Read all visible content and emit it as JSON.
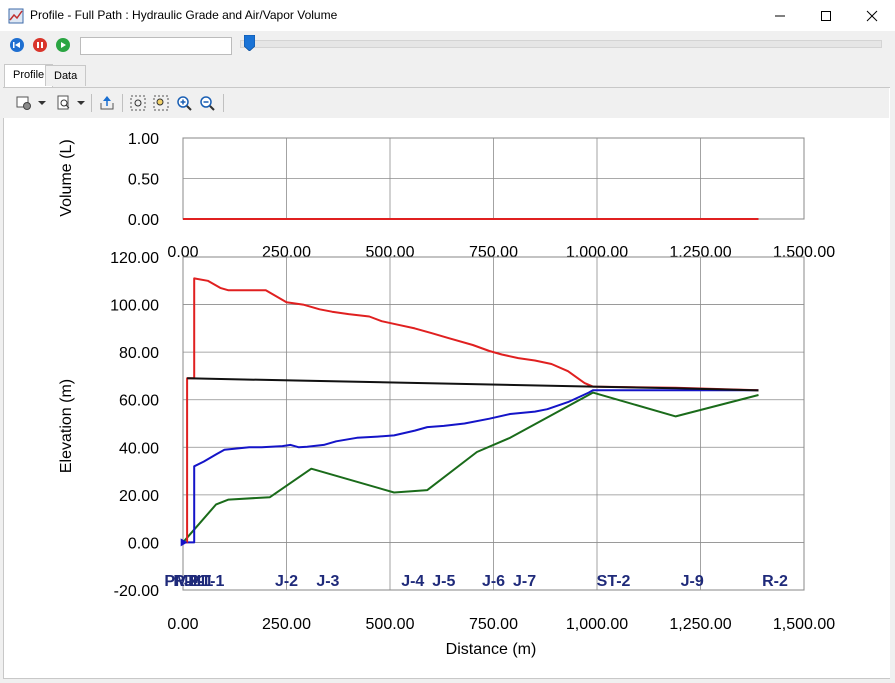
{
  "window": {
    "title": "Profile - Full Path : Hydraulic Grade and Air/Vapor Volume",
    "minimize_icon": "minimize-icon",
    "maximize_icon": "maximize-icon",
    "close_icon": "close-icon"
  },
  "playback": {
    "buttons": [
      {
        "name": "rewind-button",
        "icon": "rewind-icon",
        "color": "#1f6fd1"
      },
      {
        "name": "pause-button",
        "icon": "pause-icon",
        "color": "#d9352b"
      },
      {
        "name": "play-button",
        "icon": "play-icon",
        "color": "#2aa542"
      }
    ],
    "time_value": "",
    "slider_position": 0.0
  },
  "tabs": [
    {
      "label": "Profile",
      "active": true
    },
    {
      "label": "Data",
      "active": false
    }
  ],
  "toolbar": {
    "items": [
      "chart-settings-icon",
      "dropdown-icon",
      "print-preview-icon",
      "dropdown-icon",
      "export-icon",
      "zoom-extents-icon",
      "zoom-window-icon",
      "zoom-in-icon",
      "zoom-out-icon"
    ]
  },
  "chart_data": [
    {
      "type": "line",
      "title": "Full Path : Hydraulic Grade and Air/Vapor Volume",
      "title_color": "#1f1fb8",
      "ylabel": "Volume (L)",
      "xlabel": "",
      "xlim": [
        0,
        1500
      ],
      "ylim": [
        0,
        1
      ],
      "x_ticks": [
        "0.00",
        "250.00",
        "500.00",
        "750.00",
        "1,000.00",
        "1,250.00",
        "1,500.00"
      ],
      "y_ticks": [
        "1.00",
        "0.50",
        "0.00"
      ],
      "grid": true,
      "series": [
        {
          "color": "#e02020",
          "x": [
            0,
            1390
          ],
          "y": [
            0,
            0
          ]
        }
      ]
    },
    {
      "type": "line",
      "title": "",
      "ylabel": "Elevation (m)",
      "xlabel": "Distance (m)",
      "xlim": [
        0,
        1500
      ],
      "ylim": [
        -20,
        120
      ],
      "x_ticks": [
        "0.00",
        "250.00",
        "500.00",
        "750.00",
        "1,000.00",
        "1,250.00",
        "1,500.00"
      ],
      "y_ticks": [
        "120.00",
        "100.00",
        "80.00",
        "60.00",
        "40.00",
        "20.00",
        "0.00",
        "-20.00"
      ],
      "grid": true,
      "node_labels": [
        {
          "label": "R-1",
          "x": 8
        },
        {
          "label": "PMP-1",
          "x": 14
        },
        {
          "label": "J-1",
          "x": 30
        },
        {
          "label": "HT-1",
          "x": 58
        },
        {
          "label": "J-2",
          "x": 250
        },
        {
          "label": "J-3",
          "x": 350
        },
        {
          "label": "J-4",
          "x": 555
        },
        {
          "label": "J-5",
          "x": 630
        },
        {
          "label": "J-6",
          "x": 750
        },
        {
          "label": "J-7",
          "x": 825
        },
        {
          "label": "ST-2",
          "x": 1040
        },
        {
          "label": "J-9",
          "x": 1230
        },
        {
          "label": "R-2",
          "x": 1430
        }
      ],
      "series": [
        {
          "color": "#1a6b1a",
          "x": [
            0,
            10,
            30,
            80,
            110,
            210,
            310,
            510,
            590,
            710,
            790,
            990,
            1190,
            1390
          ],
          "y": [
            0,
            2,
            6,
            16,
            18,
            19,
            31,
            21,
            22,
            38,
            44,
            63,
            53,
            62
          ]
        },
        {
          "color": "#1414c8",
          "x": [
            0,
            10,
            20,
            27,
            27,
            50,
            80,
            100,
            130,
            160,
            190,
            240,
            260,
            280,
            300,
            340,
            370,
            420,
            470,
            510,
            560,
            590,
            630,
            680,
            740,
            790,
            850,
            880,
            930,
            980,
            990,
            1190,
            1390
          ],
          "y": [
            0,
            0,
            0,
            0,
            32,
            34,
            37,
            39,
            39.5,
            40,
            40,
            40.5,
            41,
            40,
            40.2,
            41,
            42.5,
            44,
            44.5,
            45,
            47,
            48.5,
            49,
            50,
            52,
            54,
            55,
            56,
            59,
            63,
            64,
            64,
            64
          ]
        },
        {
          "color": "#e02020",
          "x": [
            0,
            10,
            10,
            27,
            27,
            60,
            90,
            110,
            150,
            200,
            250,
            290,
            330,
            360,
            400,
            450,
            480,
            520,
            560,
            600,
            640,
            700,
            740,
            770,
            810,
            850,
            890,
            930,
            970,
            990,
            1190,
            1390
          ],
          "y": [
            0,
            0,
            69,
            69,
            111,
            110,
            107,
            106,
            106,
            106,
            101,
            100,
            98,
            97,
            96,
            95,
            93,
            91.5,
            90,
            88,
            86,
            83,
            80.5,
            79,
            77.5,
            76.5,
            75,
            72,
            67,
            65.5,
            65,
            64
          ]
        },
        {
          "color": "#111111",
          "x": [
            10,
            990,
            1190,
            1390
          ],
          "y": [
            69,
            65.5,
            64.8,
            63.9
          ]
        }
      ]
    }
  ]
}
